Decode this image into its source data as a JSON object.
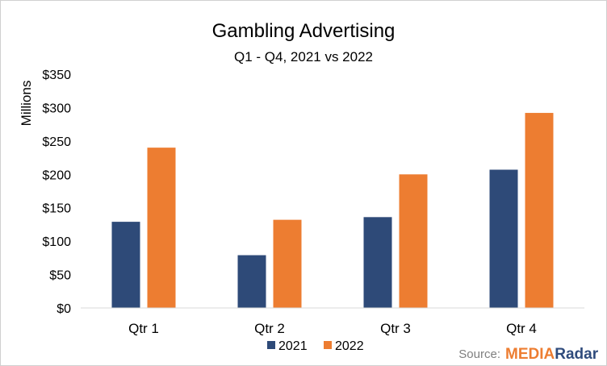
{
  "chart_data": {
    "type": "bar",
    "title": "Gambling Advertising",
    "subtitle": "Q1 - Q4, 2021 vs 2022",
    "ylabel": "Millions",
    "xlabel": "",
    "categories": [
      "Qtr 1",
      "Qtr 2",
      "Qtr 3",
      "Qtr 4"
    ],
    "ylim": [
      0,
      350
    ],
    "yticks": [
      0,
      50,
      100,
      150,
      200,
      250,
      300,
      350
    ],
    "ytick_labels": [
      "$0",
      "$50",
      "$100",
      "$150",
      "$200",
      "$250",
      "$300",
      "$350"
    ],
    "grid": false,
    "legend_position": "bottom",
    "series": [
      {
        "name": "2021",
        "color": "#2e4a78",
        "values": [
          129,
          79,
          136,
          207
        ]
      },
      {
        "name": "2022",
        "color": "#ed7d31",
        "values": [
          240,
          132,
          200,
          292
        ]
      }
    ]
  },
  "source": {
    "label": "Source:",
    "brand_part1": "MEDIA",
    "brand_part2": "Radar",
    "brand_color_1": "#ed7d31",
    "brand_color_2": "#2f4b7c"
  }
}
